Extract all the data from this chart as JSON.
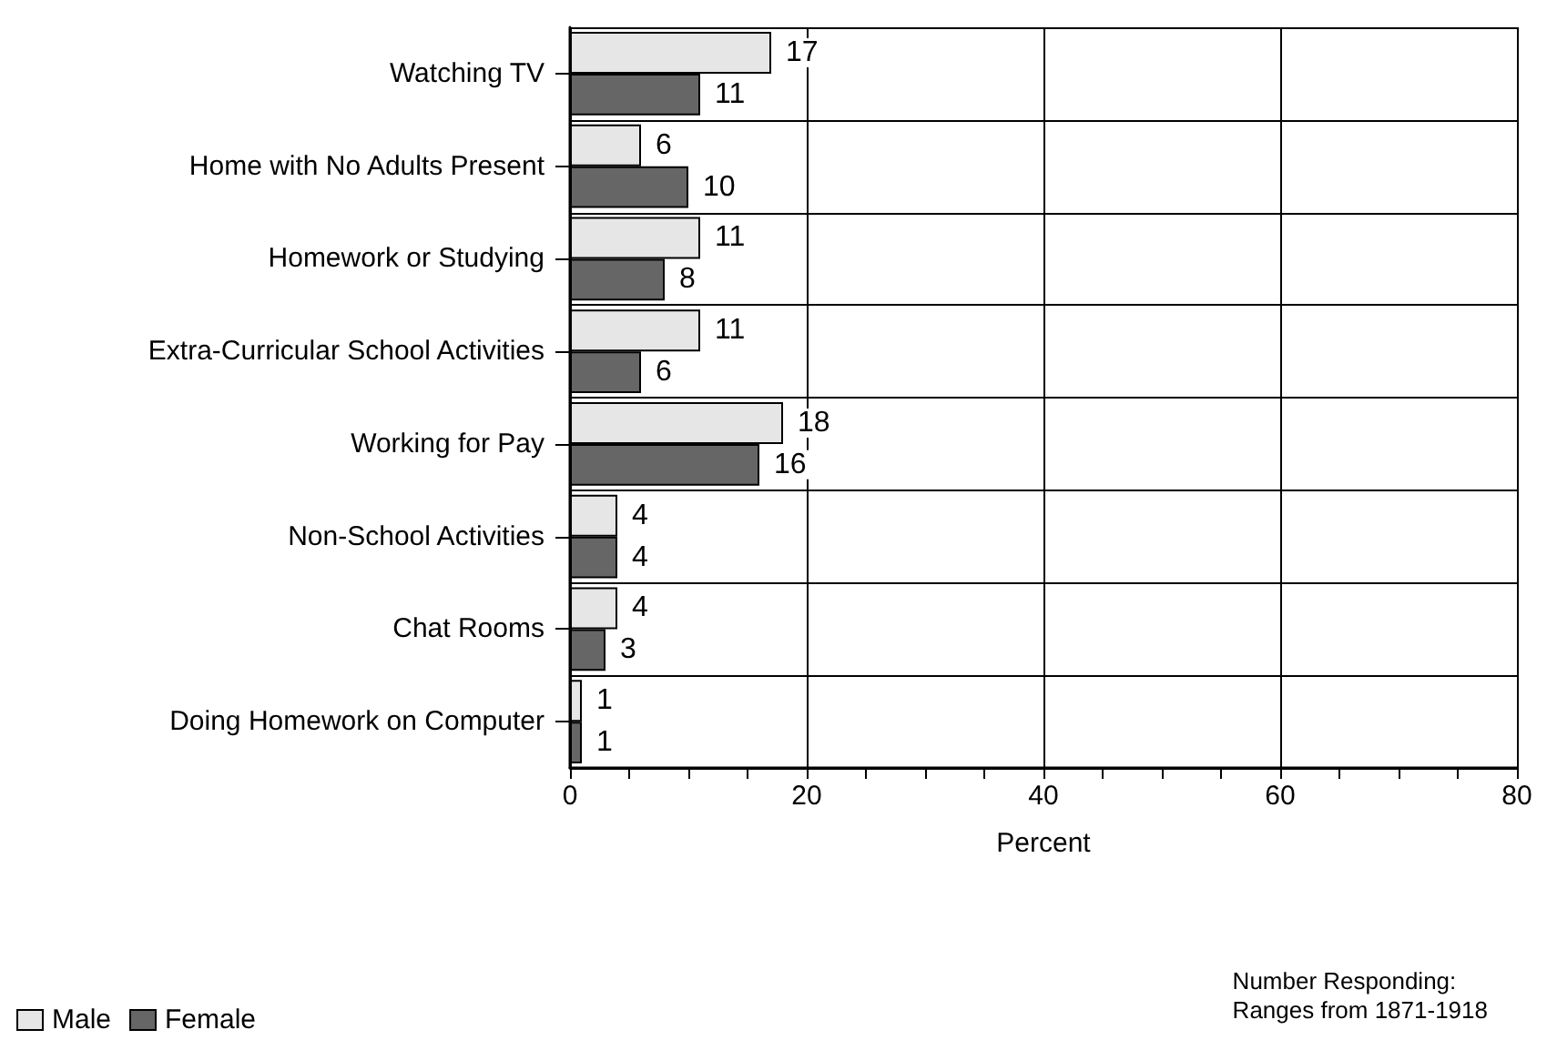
{
  "chart_data": {
    "type": "bar",
    "orientation": "horizontal",
    "categories": [
      "Watching TV",
      "Home with No Adults Present",
      "Homework or Studying",
      "Extra-Curricular School Activities",
      "Working for Pay",
      "Non-School Activities",
      "Chat Rooms",
      "Doing Homework on Computer"
    ],
    "series": [
      {
        "name": "Male",
        "color": "#e6e6e6",
        "values": [
          17,
          6,
          11,
          11,
          18,
          4,
          4,
          1
        ]
      },
      {
        "name": "Female",
        "color": "#666666",
        "values": [
          11,
          10,
          8,
          6,
          16,
          4,
          3,
          1
        ]
      }
    ],
    "xlabel": "Percent",
    "xlim": [
      0,
      80
    ],
    "xticks": [
      0,
      {
        "value": 5,
        "label": null
      },
      {
        "value": 10,
        "label": null
      },
      {
        "value": 15,
        "label": null
      },
      20,
      {
        "value": 25,
        "label": null
      },
      {
        "value": 30,
        "label": null
      },
      {
        "value": 35,
        "label": null
      },
      40,
      {
        "value": 45,
        "label": null
      },
      {
        "value": 50,
        "label": null
      },
      {
        "value": 55,
        "label": null
      },
      60,
      {
        "value": 65,
        "label": null
      },
      {
        "value": 70,
        "label": null
      },
      {
        "value": 75,
        "label": null
      },
      80
    ],
    "grid": true,
    "legend": "bottom left",
    "data_labels": true,
    "annotations": [
      "Number Responding:\nRanges from 1871-1918"
    ]
  }
}
